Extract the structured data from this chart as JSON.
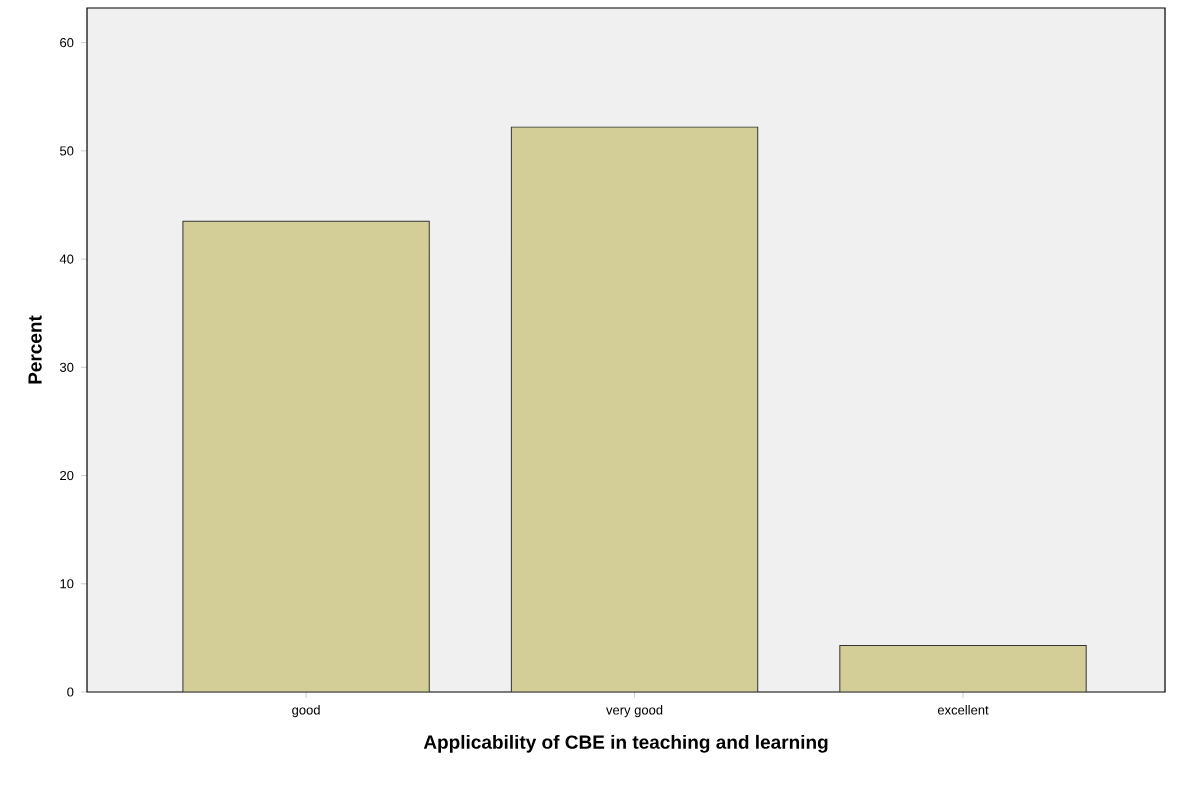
{
  "chart_data": {
    "type": "bar",
    "xlabel": "Applicability of CBE in teaching and learning",
    "ylabel": "Percent",
    "categories": [
      "good",
      "very good",
      "excellent"
    ],
    "values": [
      43.5,
      52.2,
      4.3
    ],
    "color": "#d3ce97",
    "ylim": [
      0,
      63.2
    ],
    "yticks": [
      0,
      10,
      20,
      30,
      40,
      50,
      60
    ]
  }
}
